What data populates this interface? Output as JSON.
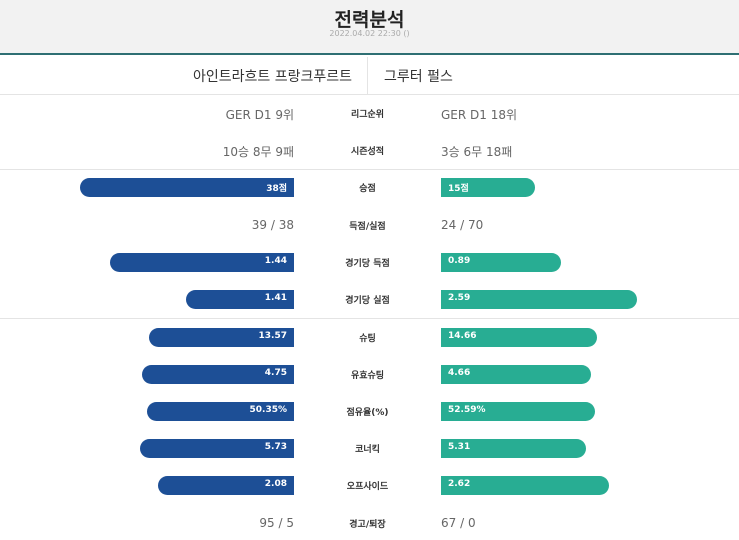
{
  "header": {
    "title": "전력분석",
    "subtitle": "2022.04.02 22:30 ()"
  },
  "teams": {
    "home": "아인트라흐트 프랑크푸르트",
    "away": "그루터 펄스"
  },
  "text_rows": [
    {
      "label": "리그순위",
      "home": "GER D1 9위",
      "away": "GER D1 18위"
    },
    {
      "label": "시즌성적",
      "home": "10승 8무 9패",
      "away": "3승 6무 18패"
    },
    {
      "label": "득점/실점",
      "home": "39 / 38",
      "away": "24 / 70"
    },
    {
      "label": "경고/퇴장",
      "home": "95 / 5",
      "away": "67 / 0"
    }
  ],
  "bar_rows": [
    {
      "label": "승점",
      "home": "38점",
      "away": "15점",
      "home_level": 0.93,
      "away_level": 0.41
    },
    {
      "label": "경기당 득점",
      "home": "1.44",
      "away": "0.89",
      "home_level": 0.8,
      "away_level": 0.52
    },
    {
      "label": "경기당 실점",
      "home": "1.41",
      "away": "2.59",
      "home_level": 0.47,
      "away_level": 0.85
    },
    {
      "label": "슈팅",
      "home": "13.57",
      "away": "14.66",
      "home_level": 0.63,
      "away_level": 0.68
    },
    {
      "label": "유효슈팅",
      "home": "4.75",
      "away": "4.66",
      "home_level": 0.66,
      "away_level": 0.65
    },
    {
      "label": "점유율(%)",
      "home": "50.35%",
      "away": "52.59%",
      "home_level": 0.64,
      "away_level": 0.67
    },
    {
      "label": "코너킥",
      "home": "5.73",
      "away": "5.31",
      "home_level": 0.67,
      "away_level": 0.63
    },
    {
      "label": "오프사이드",
      "home": "2.08",
      "away": "2.62",
      "home_level": 0.59,
      "away_level": 0.73
    }
  ],
  "colors": {
    "home_bar": "#1d4f96",
    "away_bar": "#28ad93",
    "header_line": "#2e6f73"
  }
}
